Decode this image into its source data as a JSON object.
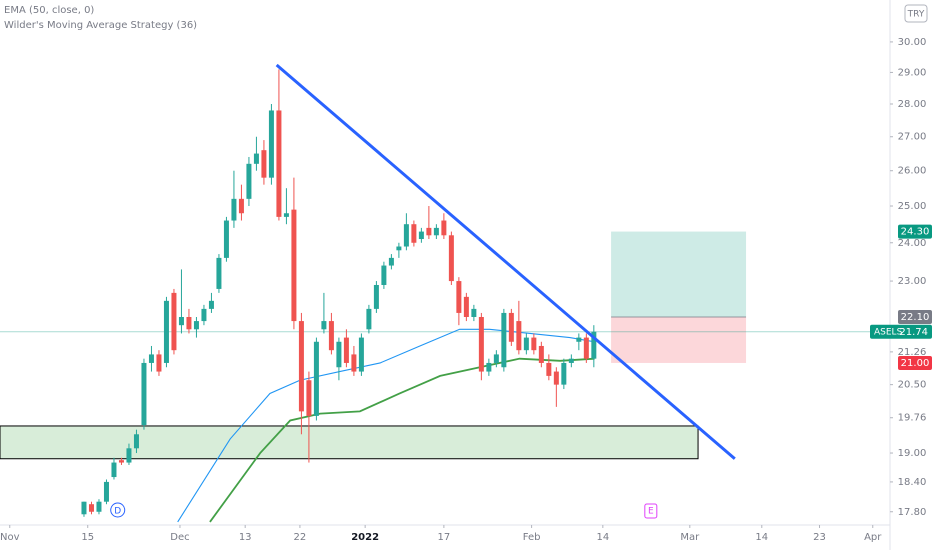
{
  "chart_data": {
    "type": "candlestick",
    "symbol": "ASELS",
    "currency": "TRY",
    "log_scale": true,
    "xlim": [
      -11.2,
      107.5
    ],
    "ylim": [
      17.54,
      31.43
    ],
    "xticks": [
      {
        "value": -9.9,
        "label": "Nov"
      },
      {
        "value": 0.5,
        "label": "15"
      },
      {
        "value": 12.8,
        "label": "Dec"
      },
      {
        "value": 21.5,
        "label": "13"
      },
      {
        "value": 28.8,
        "label": "22"
      },
      {
        "value": 37.5,
        "label": "2022"
      },
      {
        "value": 48,
        "label": "17"
      },
      {
        "value": 59.7,
        "label": "Feb"
      },
      {
        "value": 69.2,
        "label": "14"
      },
      {
        "value": 80.8,
        "label": "Mar"
      },
      {
        "value": 90.4,
        "label": "14"
      },
      {
        "value": 98.1,
        "label": "23"
      },
      {
        "value": 105.2,
        "label": "Apr"
      }
    ],
    "yticks": [
      {
        "value": 30,
        "label": "30.00"
      },
      {
        "value": 29,
        "label": "29.00"
      },
      {
        "value": 28,
        "label": "28.00"
      },
      {
        "value": 27,
        "label": "27.00"
      },
      {
        "value": 26,
        "label": "26.00"
      },
      {
        "value": 25,
        "label": "25.00"
      },
      {
        "value": 24,
        "label": "24.00"
      },
      {
        "value": 23,
        "label": "23.00"
      },
      21.26,
      {
        "value": 20.5,
        "label": "20.50"
      },
      19.76,
      {
        "value": 19,
        "label": "19.00"
      },
      {
        "value": 18.4,
        "label": "18.40"
      },
      {
        "value": 17.8,
        "label": "17.80"
      }
    ],
    "up_color": "#26a69a",
    "down_color": "#ef5350",
    "candles": {
      "x": [
        0,
        1,
        2,
        3,
        4,
        5,
        6,
        7,
        8,
        9,
        10,
        11,
        12,
        13,
        14,
        15,
        16,
        17,
        18,
        19,
        20,
        21,
        22,
        23,
        24,
        25,
        26,
        27,
        28,
        29,
        30,
        31,
        32,
        33,
        34,
        35,
        36,
        37,
        38,
        39,
        40,
        41,
        42,
        43,
        44,
        45,
        46,
        47,
        48,
        49,
        50,
        51,
        52,
        53,
        54,
        55,
        56,
        57,
        58,
        59,
        60,
        61,
        62,
        63,
        64,
        65,
        66,
        67,
        68
      ],
      "open": [
        17.75,
        17.95,
        17.8,
        18.0,
        18.5,
        18.85,
        18.8,
        19.1,
        19.6,
        21.0,
        21.2,
        21.0,
        22.7,
        21.9,
        22.1,
        21.8,
        22.0,
        22.3,
        22.8,
        23.6,
        24.6,
        25.2,
        25.2,
        26.2,
        26.6,
        25.8,
        27.8,
        24.7,
        24.9,
        22.0,
        20.6,
        19.8,
        21.8,
        22.0,
        20.9,
        21.6,
        21.2,
        20.8,
        21.8,
        22.3,
        22.9,
        23.4,
        23.8,
        23.9,
        24.5,
        24.1,
        24.4,
        24.2,
        24.6,
        24.2,
        23.0,
        22.6,
        22.1,
        22.1,
        20.8,
        21.0,
        20.9,
        22.2,
        22.0,
        21.3,
        21.6,
        21.4,
        21.0,
        20.8,
        20.5,
        21.0,
        21.5,
        21.6,
        21.1
      ],
      "high": [
        18.0,
        18.0,
        18.05,
        18.45,
        18.9,
        18.9,
        19.2,
        19.5,
        21.1,
        21.4,
        21.3,
        22.6,
        22.8,
        23.3,
        22.3,
        22.1,
        22.4,
        22.7,
        23.7,
        24.7,
        26.0,
        25.6,
        26.4,
        27.0,
        26.9,
        28.0,
        29.1,
        25.5,
        25.8,
        22.2,
        20.8,
        21.6,
        22.7,
        22.2,
        21.6,
        21.8,
        21.4,
        21.7,
        22.4,
        23.0,
        23.5,
        23.7,
        24.0,
        24.8,
        24.6,
        24.4,
        25.0,
        24.5,
        24.8,
        24.3,
        23.1,
        22.7,
        22.4,
        22.2,
        21.1,
        21.3,
        22.3,
        22.3,
        22.5,
        21.7,
        21.7,
        21.5,
        21.2,
        20.9,
        21.1,
        21.2,
        21.7,
        21.7,
        21.9
      ],
      "low": [
        17.7,
        17.75,
        17.75,
        17.95,
        18.45,
        18.75,
        18.75,
        19.0,
        19.5,
        20.8,
        20.7,
        20.9,
        21.2,
        21.7,
        21.7,
        21.6,
        21.9,
        22.2,
        22.7,
        23.5,
        24.4,
        24.6,
        25.0,
        26.0,
        25.6,
        25.6,
        24.6,
        24.5,
        21.8,
        19.4,
        18.8,
        19.7,
        21.7,
        21.2,
        20.6,
        20.9,
        20.7,
        20.7,
        21.7,
        22.2,
        22.8,
        23.3,
        23.6,
        23.8,
        23.9,
        24.0,
        24.1,
        24.1,
        24.1,
        22.9,
        21.9,
        22.0,
        22.0,
        20.6,
        20.7,
        20.9,
        20.8,
        21.4,
        21.2,
        21.2,
        21.2,
        20.9,
        20.6,
        20.0,
        20.4,
        20.9,
        21.3,
        21.0,
        20.9
      ],
      "close": [
        18.0,
        17.8,
        18.0,
        18.4,
        18.8,
        18.8,
        19.1,
        19.4,
        21.0,
        21.2,
        20.8,
        22.5,
        21.3,
        22.1,
        21.8,
        22.0,
        22.3,
        22.5,
        23.6,
        24.6,
        25.2,
        24.8,
        26.2,
        26.5,
        25.8,
        27.8,
        24.7,
        24.8,
        22.0,
        19.9,
        19.8,
        21.5,
        22.0,
        21.3,
        21.5,
        21.0,
        20.8,
        21.6,
        22.3,
        22.9,
        23.4,
        23.6,
        23.9,
        24.5,
        24.0,
        24.3,
        24.2,
        24.4,
        24.2,
        23.0,
        22.2,
        22.1,
        22.3,
        20.8,
        21.0,
        21.2,
        22.2,
        21.5,
        21.3,
        21.6,
        21.3,
        21.0,
        20.7,
        20.5,
        21.0,
        21.1,
        21.6,
        21.1,
        21.74
      ]
    },
    "series": [
      {
        "name": "EMA (50, close, 0)",
        "color": "#2196f3",
        "x": [
          12.5,
          19.5,
          24.8,
          28.8,
          34.1,
          39.5,
          44.8,
          50.1,
          54.1,
          59.5,
          64.8,
          68.1
        ],
        "values": [
          17.6,
          19.3,
          20.3,
          20.6,
          20.8,
          21.0,
          21.4,
          21.8,
          21.8,
          21.7,
          21.6,
          21.5
        ]
      },
      {
        "name": "Wilder's Moving Average Strategy (36)",
        "color": "#43a047",
        "x": [
          16.8,
          23.5,
          27.5,
          31.5,
          36.8,
          42.1,
          47.5,
          52.8,
          58.1,
          63.5,
          68.1
        ],
        "values": [
          17.6,
          19.0,
          19.7,
          19.85,
          19.9,
          20.3,
          20.7,
          20.9,
          21.1,
          21.05,
          21.1
        ]
      }
    ],
    "trendline": {
      "color": "#2962ff",
      "x": [
        25.7,
        86.8
      ],
      "y": [
        29.24,
        18.88
      ]
    },
    "zone": {
      "x": [
        -11.2,
        81.9
      ],
      "y": [
        19.58,
        18.88
      ]
    },
    "position": {
      "x": [
        70.3,
        88.3
      ],
      "target": {
        "value": 24.3,
        "label": "24.30"
      },
      "entry": {
        "value": 22.1,
        "label": "22.10"
      },
      "stop": {
        "value": 21,
        "label": "21.00"
      }
    },
    "last_price": {
      "value": 21.74,
      "label": "21.74"
    },
    "markers": [
      {
        "label": "D",
        "x": 4.5
      },
      {
        "label": "E",
        "x": 75.6
      }
    ]
  }
}
